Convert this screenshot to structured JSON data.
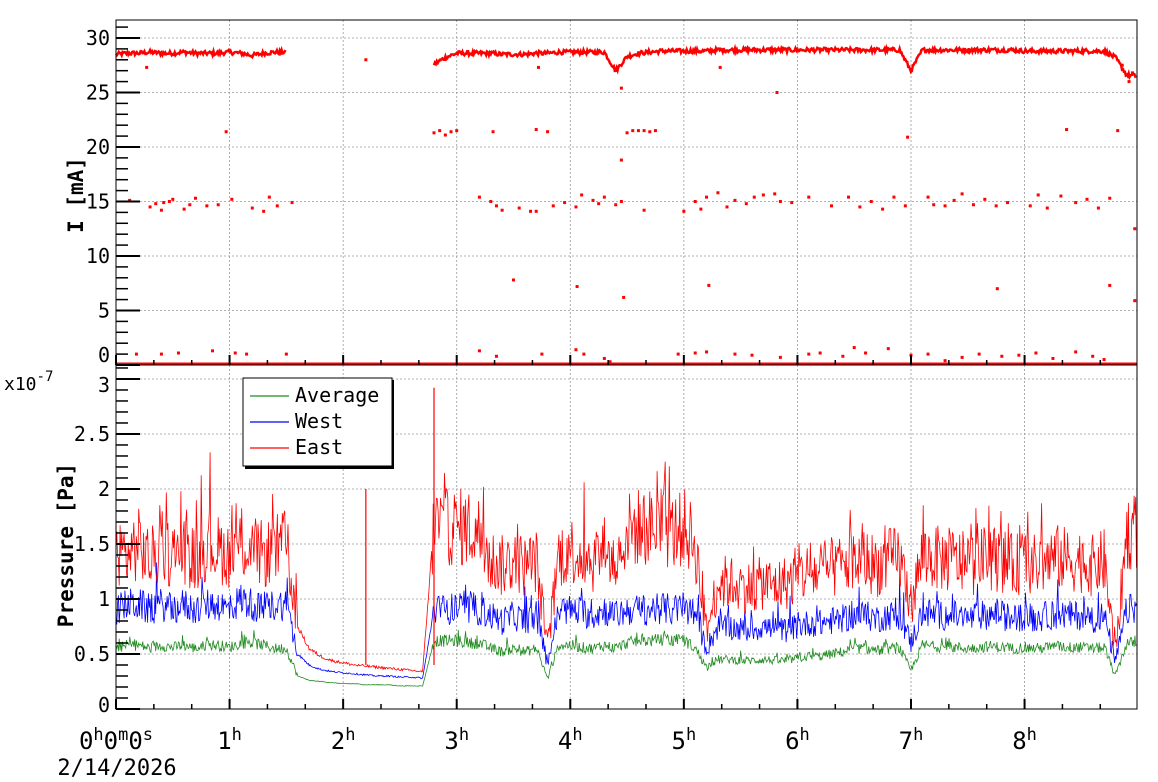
{
  "chart_data": [
    {
      "type": "scatter",
      "name": "beam-current",
      "ylabel": "I [mA]",
      "ylim": [
        0,
        31.65
      ],
      "xlim_hours": [
        0,
        8.99
      ],
      "y_ticks": [
        0,
        5,
        10,
        15,
        20,
        25,
        30
      ],
      "y_tick_labels": [
        "0",
        "5",
        "10",
        "15",
        "20",
        "25",
        "30"
      ],
      "grid": true,
      "color": "#ff0000",
      "x_step_hours": 0.1,
      "main_band_values": [
        28.5,
        28.6,
        28.6,
        28.7,
        28.6,
        28.6,
        28.7,
        28.6,
        28.6,
        28.6,
        28.7,
        28.6,
        28.4,
        28.6,
        28.7,
        28.7,
        0,
        0,
        0,
        0,
        0,
        0,
        0,
        0,
        0,
        0,
        0,
        0,
        27.6,
        28.2,
        28.6,
        28.6,
        28.6,
        28.6,
        28.5,
        28.5,
        28.5,
        28.6,
        28.6,
        28.7,
        28.7,
        28.7,
        28.7,
        28.7,
        27.0,
        28.3,
        28.6,
        28.7,
        28.8,
        28.8,
        28.8,
        28.8,
        28.8,
        28.9,
        28.9,
        28.9,
        28.9,
        28.9,
        28.9,
        28.9,
        28.9,
        28.9,
        28.9,
        28.9,
        28.9,
        28.9,
        28.9,
        28.9,
        28.9,
        28.9,
        27.0,
        28.9,
        28.9,
        28.9,
        28.9,
        28.9,
        28.9,
        28.9,
        28.9,
        28.9,
        28.8,
        28.8,
        28.8,
        28.8,
        28.8,
        28.8,
        28.8,
        28.8,
        28.2,
        26.6,
        26.5
      ],
      "outlier_points": [
        [
          2.2,
          28.0
        ],
        [
          0.27,
          27.3
        ],
        [
          3.72,
          27.3
        ],
        [
          5.32,
          27.3
        ],
        [
          5.82,
          25.0
        ],
        [
          4.45,
          18.8
        ],
        [
          4.45,
          25.4
        ],
        [
          0.97,
          21.4
        ],
        [
          2.8,
          21.3
        ],
        [
          2.85,
          21.5
        ],
        [
          2.9,
          21.1
        ],
        [
          2.95,
          21.4
        ],
        [
          3.0,
          21.5
        ],
        [
          3.32,
          21.4
        ],
        [
          3.7,
          21.6
        ],
        [
          3.8,
          21.4
        ],
        [
          4.5,
          21.3
        ],
        [
          4.55,
          21.5
        ],
        [
          4.6,
          21.5
        ],
        [
          4.65,
          21.5
        ],
        [
          4.7,
          21.4
        ],
        [
          4.75,
          21.5
        ],
        [
          6.97,
          20.9
        ],
        [
          8.37,
          21.6
        ],
        [
          8.82,
          21.5
        ],
        [
          0.12,
          15.1
        ],
        [
          0.3,
          14.5
        ],
        [
          0.35,
          14.8
        ],
        [
          0.4,
          14.2
        ],
        [
          0.42,
          14.9
        ],
        [
          0.47,
          15.0
        ],
        [
          0.5,
          15.2
        ],
        [
          0.6,
          14.3
        ],
        [
          0.65,
          14.7
        ],
        [
          0.7,
          15.3
        ],
        [
          0.8,
          14.6
        ],
        [
          0.9,
          14.7
        ],
        [
          1.02,
          15.2
        ],
        [
          1.2,
          14.4
        ],
        [
          1.3,
          14.1
        ],
        [
          1.35,
          15.4
        ],
        [
          1.42,
          14.6
        ],
        [
          1.55,
          14.9
        ],
        [
          3.2,
          15.4
        ],
        [
          3.3,
          15.0
        ],
        [
          3.35,
          14.6
        ],
        [
          3.4,
          14.2
        ],
        [
          3.55,
          14.4
        ],
        [
          3.65,
          14.1
        ],
        [
          3.7,
          14.1
        ],
        [
          3.85,
          14.6
        ],
        [
          3.95,
          14.9
        ],
        [
          4.05,
          14.5
        ],
        [
          4.1,
          15.6
        ],
        [
          4.2,
          15.1
        ],
        [
          4.25,
          14.8
        ],
        [
          4.3,
          15.4
        ],
        [
          4.4,
          14.7
        ],
        [
          4.45,
          15.0
        ],
        [
          4.65,
          14.2
        ],
        [
          5.0,
          14.1
        ],
        [
          5.1,
          15.0
        ],
        [
          5.15,
          14.3
        ],
        [
          5.2,
          15.4
        ],
        [
          5.3,
          15.8
        ],
        [
          5.38,
          14.5
        ],
        [
          5.45,
          15.1
        ],
        [
          5.55,
          14.8
        ],
        [
          5.62,
          15.4
        ],
        [
          5.7,
          15.6
        ],
        [
          5.8,
          15.7
        ],
        [
          5.85,
          15.0
        ],
        [
          5.95,
          14.9
        ],
        [
          6.1,
          15.4
        ],
        [
          6.3,
          14.6
        ],
        [
          6.45,
          15.4
        ],
        [
          6.55,
          14.5
        ],
        [
          6.65,
          15.0
        ],
        [
          6.75,
          14.3
        ],
        [
          6.85,
          15.4
        ],
        [
          6.95,
          14.6
        ],
        [
          7.15,
          15.4
        ],
        [
          7.2,
          14.7
        ],
        [
          7.3,
          14.6
        ],
        [
          7.38,
          15.1
        ],
        [
          7.45,
          15.7
        ],
        [
          7.55,
          14.7
        ],
        [
          7.65,
          15.2
        ],
        [
          7.75,
          14.6
        ],
        [
          7.85,
          14.9
        ],
        [
          8.05,
          14.6
        ],
        [
          8.12,
          15.6
        ],
        [
          8.2,
          14.4
        ],
        [
          8.32,
          15.5
        ],
        [
          8.45,
          14.9
        ],
        [
          8.55,
          15.2
        ],
        [
          8.65,
          14.4
        ],
        [
          8.75,
          15.3
        ],
        [
          3.5,
          7.8
        ],
        [
          4.06,
          7.2
        ],
        [
          4.47,
          6.2
        ],
        [
          5.22,
          7.3
        ],
        [
          7.76,
          7.0
        ],
        [
          8.75,
          7.3
        ],
        [
          8.97,
          5.9
        ],
        [
          8.97,
          12.5
        ],
        [
          8.92,
          26.0
        ],
        [
          8.95,
          26.8
        ],
        [
          8.86,
          27.5
        ],
        [
          0.18,
          1.0
        ],
        [
          0.4,
          1.0
        ],
        [
          0.55,
          1.1
        ],
        [
          0.85,
          1.3
        ],
        [
          1.05,
          1.1
        ],
        [
          1.15,
          1.0
        ],
        [
          1.5,
          1.0
        ],
        [
          3.2,
          1.3
        ],
        [
          3.35,
          0.8
        ],
        [
          3.75,
          1.0
        ],
        [
          4.05,
          1.4
        ],
        [
          4.12,
          1.0
        ],
        [
          4.3,
          0.6
        ],
        [
          4.35,
          0.3
        ],
        [
          4.95,
          1.0
        ],
        [
          5.1,
          1.1
        ],
        [
          5.2,
          1.2
        ],
        [
          5.45,
          1.0
        ],
        [
          5.6,
          0.9
        ],
        [
          5.85,
          0.7
        ],
        [
          6.1,
          1.0
        ],
        [
          6.2,
          1.1
        ],
        [
          6.4,
          0.8
        ],
        [
          6.5,
          1.6
        ],
        [
          6.6,
          1.1
        ],
        [
          6.8,
          1.5
        ],
        [
          7.0,
          0.9
        ],
        [
          7.15,
          1.0
        ],
        [
          7.3,
          0.4
        ],
        [
          7.45,
          0.7
        ],
        [
          7.6,
          1.0
        ],
        [
          7.8,
          0.8
        ],
        [
          7.95,
          0.9
        ],
        [
          8.1,
          1.1
        ],
        [
          8.25,
          0.6
        ],
        [
          8.45,
          1.2
        ],
        [
          8.6,
          0.8
        ],
        [
          8.7,
          0.5
        ]
      ]
    },
    {
      "type": "line",
      "name": "pressure",
      "ylabel": "Pressure [Pa]",
      "y_multiplier": "x10",
      "y_multiplier_exponent": "-7",
      "ylim": [
        0,
        3.127
      ],
      "xlim_hours": [
        0,
        8.99
      ],
      "y_ticks": [
        0,
        0.5,
        1,
        1.5,
        2,
        2.5,
        3
      ],
      "y_tick_labels": [
        "0",
        "0.5",
        "1",
        "1.5",
        "2",
        "2.5",
        "3"
      ],
      "grid": true,
      "legend_position": "top-left",
      "x_step_hours": 0.1,
      "low_noise_ranges": [
        [
          1.6,
          2.78
        ]
      ],
      "series": [
        {
          "name": "Average",
          "color": "#228b22",
          "noise": 0.09,
          "values": [
            0.55,
            0.58,
            0.58,
            0.55,
            0.58,
            0.56,
            0.58,
            0.55,
            0.58,
            0.58,
            0.56,
            0.6,
            0.6,
            0.58,
            0.55,
            0.55,
            0.3,
            0.26,
            0.25,
            0.24,
            0.23,
            0.23,
            0.22,
            0.22,
            0.22,
            0.21,
            0.21,
            0.21,
            0.62,
            0.62,
            0.62,
            0.6,
            0.6,
            0.55,
            0.52,
            0.55,
            0.52,
            0.55,
            0.28,
            0.58,
            0.58,
            0.56,
            0.55,
            0.58,
            0.55,
            0.6,
            0.62,
            0.62,
            0.63,
            0.62,
            0.63,
            0.55,
            0.38,
            0.45,
            0.45,
            0.44,
            0.44,
            0.45,
            0.44,
            0.44,
            0.46,
            0.48,
            0.48,
            0.5,
            0.52,
            0.55,
            0.55,
            0.53,
            0.55,
            0.55,
            0.35,
            0.58,
            0.57,
            0.56,
            0.56,
            0.55,
            0.56,
            0.57,
            0.56,
            0.55,
            0.56,
            0.55,
            0.56,
            0.57,
            0.56,
            0.56,
            0.55,
            0.56,
            0.3,
            0.6,
            0.6
          ]
        },
        {
          "name": "West",
          "color": "#0000ff",
          "noise": 0.16,
          "values": [
            0.9,
            0.95,
            0.95,
            0.9,
            0.95,
            0.9,
            0.95,
            0.9,
            0.95,
            0.95,
            0.9,
            1.0,
            0.95,
            0.9,
            0.95,
            0.95,
            0.5,
            0.4,
            0.36,
            0.34,
            0.33,
            0.32,
            0.31,
            0.3,
            0.3,
            0.29,
            0.29,
            0.28,
            0.9,
            0.9,
            0.92,
            0.9,
            0.9,
            0.85,
            0.8,
            0.85,
            0.8,
            0.85,
            0.42,
            0.9,
            0.9,
            0.88,
            0.85,
            0.9,
            0.85,
            0.9,
            0.9,
            0.9,
            0.92,
            0.9,
            0.92,
            0.85,
            0.55,
            0.75,
            0.75,
            0.72,
            0.72,
            0.75,
            0.72,
            0.72,
            0.75,
            0.78,
            0.78,
            0.8,
            0.82,
            0.85,
            0.85,
            0.82,
            0.85,
            0.85,
            0.6,
            0.88,
            0.86,
            0.85,
            0.85,
            0.82,
            0.85,
            0.86,
            0.85,
            0.82,
            0.85,
            0.82,
            0.85,
            0.86,
            0.85,
            0.85,
            0.82,
            0.85,
            0.42,
            0.9,
            0.92
          ]
        },
        {
          "name": "East",
          "color": "#ff0000",
          "noise": 0.22,
          "values": [
            1.45,
            1.4,
            1.5,
            1.35,
            1.45,
            1.4,
            1.45,
            1.35,
            1.5,
            1.45,
            1.4,
            1.5,
            1.45,
            1.4,
            1.45,
            1.5,
            0.75,
            0.55,
            0.48,
            0.44,
            0.42,
            0.4,
            0.39,
            0.38,
            0.37,
            0.36,
            0.35,
            0.34,
            1.7,
            1.65,
            1.65,
            1.65,
            1.6,
            1.35,
            1.3,
            1.35,
            1.3,
            1.35,
            0.55,
            1.4,
            1.45,
            1.4,
            1.35,
            1.45,
            1.3,
            1.62,
            1.65,
            1.65,
            1.65,
            1.6,
            1.65,
            1.5,
            0.7,
            1.15,
            1.15,
            1.12,
            1.1,
            1.15,
            1.12,
            1.15,
            1.2,
            1.25,
            1.22,
            1.28,
            1.3,
            1.35,
            1.35,
            1.3,
            1.35,
            1.38,
            0.95,
            1.4,
            1.38,
            1.35,
            1.35,
            1.3,
            1.35,
            1.38,
            1.35,
            1.3,
            1.35,
            1.3,
            1.35,
            1.38,
            1.35,
            1.35,
            1.3,
            1.35,
            0.5,
            1.6,
            1.62
          ],
          "spikes": [
            [
              2.2,
              2.0
            ],
            [
              2.8,
              2.92
            ]
          ]
        }
      ]
    }
  ],
  "x_axis": {
    "tick_hours": [
      0,
      1,
      2,
      3,
      4,
      5,
      6,
      7,
      8
    ],
    "tick_labels": [
      [
        "0",
        "h",
        "0",
        "m",
        "0",
        "s"
      ],
      [
        "1",
        "h"
      ],
      [
        "2",
        "h"
      ],
      [
        "3",
        "h"
      ],
      [
        "4",
        "h"
      ],
      [
        "5",
        "h"
      ],
      [
        "6",
        "h"
      ],
      [
        "7",
        "h"
      ],
      [
        "8",
        "h"
      ]
    ],
    "date_label": "2/14/2026"
  }
}
